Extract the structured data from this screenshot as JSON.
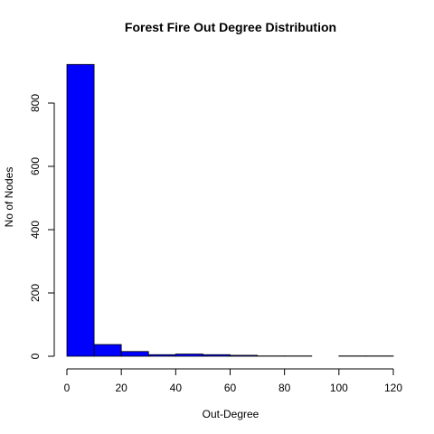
{
  "chart_data": {
    "type": "bar",
    "title": "Forest Fire Out Degree Distribution",
    "xlabel": "Out-Degree",
    "ylabel": "No of Nodes",
    "xlim": [
      0,
      120
    ],
    "ylim": [
      0,
      920
    ],
    "x_ticks": [
      "0",
      "20",
      "40",
      "60",
      "80",
      "100",
      "120"
    ],
    "y_ticks": [
      "0",
      "200",
      "400",
      "600",
      "800"
    ],
    "bin_edges": [
      0,
      10,
      20,
      30,
      40,
      50,
      60,
      70,
      80,
      90,
      100,
      110,
      120
    ],
    "values": [
      922,
      37,
      15,
      5,
      7,
      5,
      3,
      1,
      1,
      0,
      1,
      1
    ],
    "fill_color": "#0000ff",
    "grid": false
  }
}
